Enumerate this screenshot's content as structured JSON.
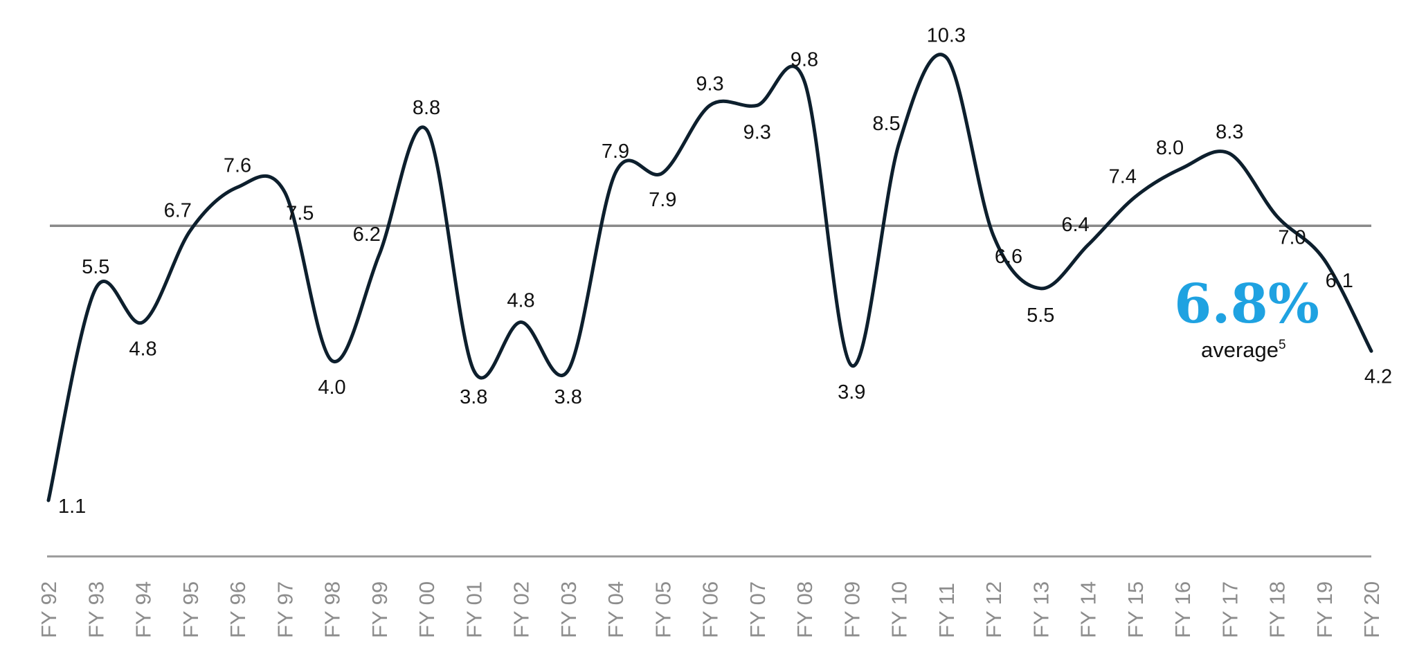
{
  "chart_data": {
    "type": "line",
    "categories": [
      "FY 92",
      "FY 93",
      "FY 94",
      "FY 95",
      "FY 96",
      "FY 97",
      "FY 98",
      "FY 99",
      "FY 00",
      "FY 01",
      "FY 02",
      "FY 03",
      "FY 04",
      "FY 05",
      "FY 06",
      "FY 07",
      "FY 08",
      "FY 09",
      "FY 10",
      "FY 11",
      "FY 12",
      "FY 13",
      "FY 14",
      "FY 15",
      "FY 16",
      "FY 17",
      "FY 18",
      "FY 19",
      "FY 20"
    ],
    "values": [
      1.1,
      5.5,
      4.8,
      6.7,
      7.6,
      7.5,
      4.0,
      6.2,
      8.8,
      3.8,
      4.8,
      3.8,
      7.9,
      7.9,
      9.3,
      9.3,
      9.8,
      3.9,
      8.5,
      10.3,
      6.6,
      5.5,
      6.4,
      7.4,
      8.0,
      8.3,
      7.0,
      6.1,
      4.2
    ],
    "value_labels": [
      "1.1",
      "5.5",
      "4.8",
      "6.7",
      "7.6",
      "7.5",
      "4.0",
      "6.2",
      "8.8",
      "3.8",
      "4.8",
      "3.8",
      "7.9",
      "7.9",
      "9.3",
      "9.3",
      "9.8",
      "3.9",
      "8.5",
      "10.3",
      "6.6",
      "5.5",
      "6.4",
      "7.4",
      "8.0",
      "8.3",
      "7.0",
      "6.1",
      "4.2"
    ],
    "average": {
      "value": 6.8,
      "value_label": "6.8%",
      "label": "average",
      "footnote": "5"
    },
    "title": "",
    "xlabel": "",
    "ylabel": "",
    "grid": false,
    "colors": {
      "line": "#0d1f2d",
      "average_line": "#8a8a8a",
      "axis": "#999999",
      "average_text": "#1fa2e1",
      "tick_text": "#8c8c8c",
      "highlight_label": "#1d3b6e"
    },
    "highlight_label_index": 2
  }
}
